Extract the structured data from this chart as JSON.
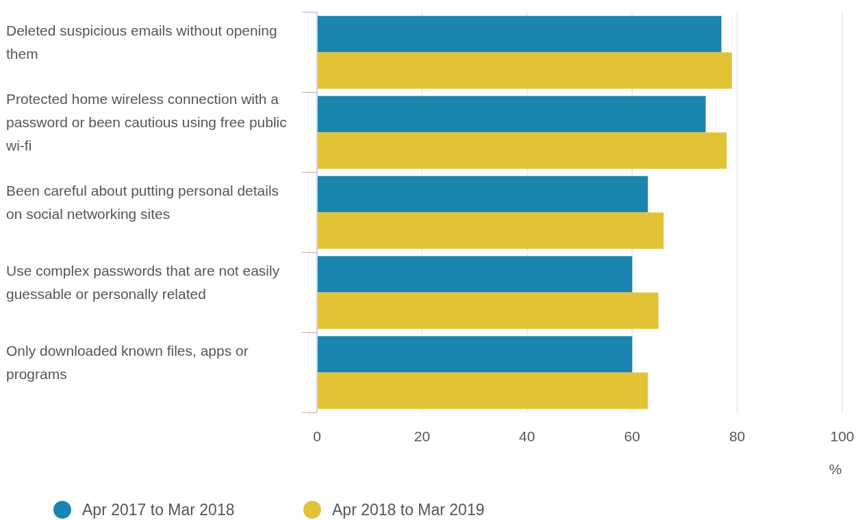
{
  "chart_data": {
    "type": "bar",
    "orientation": "horizontal",
    "categories": [
      "Deleted suspicious emails without opening them",
      "Protected home wireless connection with a password or been cautious using free public wi-fi",
      "Been careful about putting personal details on social networking sites",
      "Use complex passwords that are not easily guessable or personally related",
      "Only downloaded known files, apps or programs"
    ],
    "series": [
      {
        "name": "Apr 2017 to Mar 2018",
        "color": "#1a85ae",
        "values": [
          77,
          74,
          63,
          60,
          60
        ]
      },
      {
        "name": "Apr 2018 to Mar 2019",
        "color": "#e3c336",
        "values": [
          79,
          78,
          66,
          65,
          63
        ]
      }
    ],
    "xlim": [
      0,
      100
    ],
    "xticks": [
      0,
      20,
      40,
      60,
      80,
      100
    ],
    "xlabel": "%",
    "grid": "x",
    "legend": "bottom"
  }
}
